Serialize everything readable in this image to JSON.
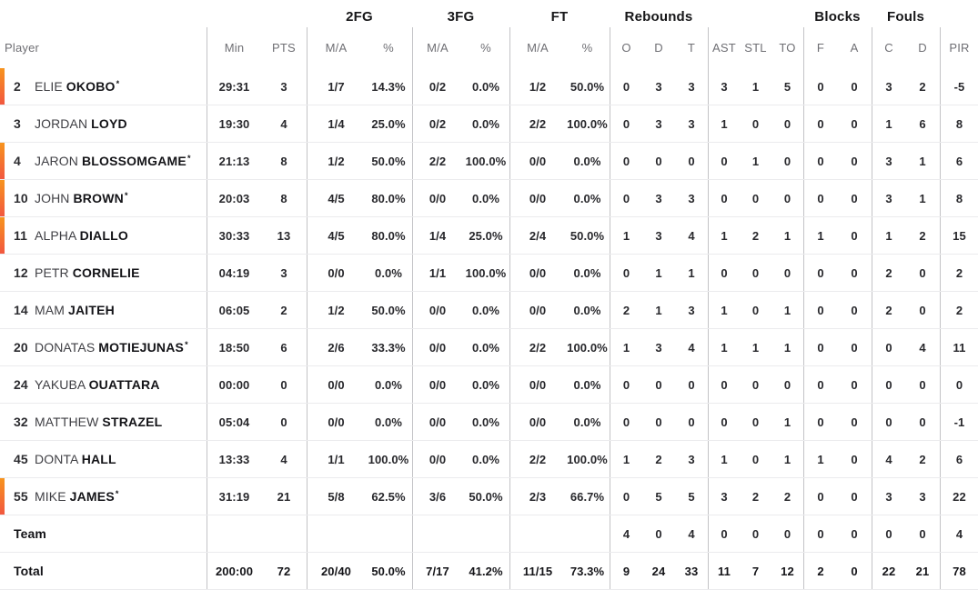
{
  "accent": {
    "on_court_bar_top": "#f7941e",
    "on_court_bar_bottom": "#f2573f",
    "grid_line_vertical": "#c3c3c6",
    "grid_line_horizontal": "#ebebed"
  },
  "table": {
    "player_col_label": "Player",
    "starter_mark": "*",
    "groups": [
      "2FG",
      "3FG",
      "FT",
      "Rebounds",
      "Blocks",
      "Fouls"
    ],
    "stat_columns": [
      "Min",
      "PTS",
      "M/A",
      "%",
      "M/A",
      "%",
      "M/A",
      "%",
      "O",
      "D",
      "T",
      "AST",
      "STL",
      "TO",
      "F",
      "A",
      "C",
      "D",
      "PIR"
    ],
    "players": [
      {
        "number": "2",
        "first": "ELIE",
        "last": "OKOBO",
        "starter": true,
        "on_court": true,
        "stats": [
          "29:31",
          "3",
          "1/7",
          "14.3%",
          "0/2",
          "0.0%",
          "1/2",
          "50.0%",
          "0",
          "3",
          "3",
          "3",
          "1",
          "5",
          "0",
          "0",
          "3",
          "2",
          "-5"
        ]
      },
      {
        "number": "3",
        "first": "JORDAN",
        "last": "LOYD",
        "starter": false,
        "on_court": false,
        "stats": [
          "19:30",
          "4",
          "1/4",
          "25.0%",
          "0/2",
          "0.0%",
          "2/2",
          "100.0%",
          "0",
          "3",
          "3",
          "1",
          "0",
          "0",
          "0",
          "0",
          "1",
          "6",
          "8"
        ]
      },
      {
        "number": "4",
        "first": "JARON",
        "last": "BLOSSOMGAME",
        "starter": true,
        "on_court": true,
        "stats": [
          "21:13",
          "8",
          "1/2",
          "50.0%",
          "2/2",
          "100.0%",
          "0/0",
          "0.0%",
          "0",
          "0",
          "0",
          "0",
          "1",
          "0",
          "0",
          "0",
          "3",
          "1",
          "6"
        ]
      },
      {
        "number": "10",
        "first": "JOHN",
        "last": "BROWN",
        "starter": true,
        "on_court": true,
        "stats": [
          "20:03",
          "8",
          "4/5",
          "80.0%",
          "0/0",
          "0.0%",
          "0/0",
          "0.0%",
          "0",
          "3",
          "3",
          "0",
          "0",
          "0",
          "0",
          "0",
          "3",
          "1",
          "8"
        ]
      },
      {
        "number": "11",
        "first": "ALPHA",
        "last": "DIALLO",
        "starter": false,
        "on_court": true,
        "stats": [
          "30:33",
          "13",
          "4/5",
          "80.0%",
          "1/4",
          "25.0%",
          "2/4",
          "50.0%",
          "1",
          "3",
          "4",
          "1",
          "2",
          "1",
          "1",
          "0",
          "1",
          "2",
          "15"
        ]
      },
      {
        "number": "12",
        "first": "PETR",
        "last": "CORNELIE",
        "starter": false,
        "on_court": false,
        "stats": [
          "04:19",
          "3",
          "0/0",
          "0.0%",
          "1/1",
          "100.0%",
          "0/0",
          "0.0%",
          "0",
          "1",
          "1",
          "0",
          "0",
          "0",
          "0",
          "0",
          "2",
          "0",
          "2"
        ]
      },
      {
        "number": "14",
        "first": "MAM",
        "last": "JAITEH",
        "starter": false,
        "on_court": false,
        "stats": [
          "06:05",
          "2",
          "1/2",
          "50.0%",
          "0/0",
          "0.0%",
          "0/0",
          "0.0%",
          "2",
          "1",
          "3",
          "1",
          "0",
          "1",
          "0",
          "0",
          "2",
          "0",
          "2"
        ]
      },
      {
        "number": "20",
        "first": "DONATAS",
        "last": "MOTIEJUNAS",
        "starter": true,
        "on_court": false,
        "stats": [
          "18:50",
          "6",
          "2/6",
          "33.3%",
          "0/0",
          "0.0%",
          "2/2",
          "100.0%",
          "1",
          "3",
          "4",
          "1",
          "1",
          "1",
          "0",
          "0",
          "0",
          "4",
          "11"
        ]
      },
      {
        "number": "24",
        "first": "YAKUBA",
        "last": "OUATTARA",
        "starter": false,
        "on_court": false,
        "stats": [
          "00:00",
          "0",
          "0/0",
          "0.0%",
          "0/0",
          "0.0%",
          "0/0",
          "0.0%",
          "0",
          "0",
          "0",
          "0",
          "0",
          "0",
          "0",
          "0",
          "0",
          "0",
          "0"
        ]
      },
      {
        "number": "32",
        "first": "MATTHEW",
        "last": "STRAZEL",
        "starter": false,
        "on_court": false,
        "stats": [
          "05:04",
          "0",
          "0/0",
          "0.0%",
          "0/0",
          "0.0%",
          "0/0",
          "0.0%",
          "0",
          "0",
          "0",
          "0",
          "0",
          "1",
          "0",
          "0",
          "0",
          "0",
          "-1"
        ]
      },
      {
        "number": "45",
        "first": "DONTA",
        "last": "HALL",
        "starter": false,
        "on_court": false,
        "stats": [
          "13:33",
          "4",
          "1/1",
          "100.0%",
          "0/0",
          "0.0%",
          "2/2",
          "100.0%",
          "1",
          "2",
          "3",
          "1",
          "0",
          "1",
          "1",
          "0",
          "4",
          "2",
          "6"
        ]
      },
      {
        "number": "55",
        "first": "MIKE",
        "last": "JAMES",
        "starter": true,
        "on_court": true,
        "stats": [
          "31:19",
          "21",
          "5/8",
          "62.5%",
          "3/6",
          "50.0%",
          "2/3",
          "66.7%",
          "0",
          "5",
          "5",
          "3",
          "2",
          "2",
          "0",
          "0",
          "3",
          "3",
          "22"
        ]
      }
    ],
    "team_row": {
      "label": "Team",
      "stats": [
        "",
        "",
        "",
        "",
        "",
        "",
        "",
        "",
        "4",
        "0",
        "4",
        "0",
        "0",
        "0",
        "0",
        "0",
        "0",
        "0",
        "4"
      ]
    },
    "total_row": {
      "label": "Total",
      "stats": [
        "200:00",
        "72",
        "20/40",
        "50.0%",
        "7/17",
        "41.2%",
        "11/15",
        "73.3%",
        "9",
        "24",
        "33",
        "11",
        "7",
        "12",
        "2",
        "0",
        "22",
        "21",
        "78"
      ]
    }
  }
}
